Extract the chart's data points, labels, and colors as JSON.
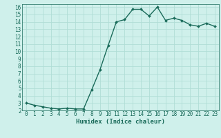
{
  "x": [
    0,
    1,
    2,
    3,
    4,
    5,
    6,
    7,
    8,
    9,
    10,
    11,
    12,
    13,
    14,
    15,
    16,
    17,
    18,
    19,
    20,
    21,
    22,
    23
  ],
  "y": [
    3.0,
    2.7,
    2.5,
    2.3,
    2.2,
    2.3,
    2.2,
    2.2,
    4.8,
    7.5,
    10.8,
    14.0,
    14.3,
    15.7,
    15.7,
    14.8,
    16.0,
    14.2,
    14.5,
    14.2,
    13.6,
    13.4,
    13.8,
    13.4
  ],
  "line_color": "#1a6b5a",
  "marker": "D",
  "marker_size": 2.0,
  "bg_color": "#cff0eb",
  "grid_color": "#b0ddd6",
  "xlabel": "Humidex (Indice chaleur)",
  "ylabel": "",
  "xlim": [
    -0.5,
    23.5
  ],
  "ylim": [
    2,
    16.4
  ],
  "yticks": [
    2,
    3,
    4,
    5,
    6,
    7,
    8,
    9,
    10,
    11,
    12,
    13,
    14,
    15,
    16
  ],
  "xticks": [
    0,
    1,
    2,
    3,
    4,
    5,
    6,
    7,
    8,
    9,
    10,
    11,
    12,
    13,
    14,
    15,
    16,
    17,
    18,
    19,
    20,
    21,
    22,
    23
  ],
  "tick_fontsize": 5.5,
  "xlabel_fontsize": 6.5,
  "line_width": 1.0
}
